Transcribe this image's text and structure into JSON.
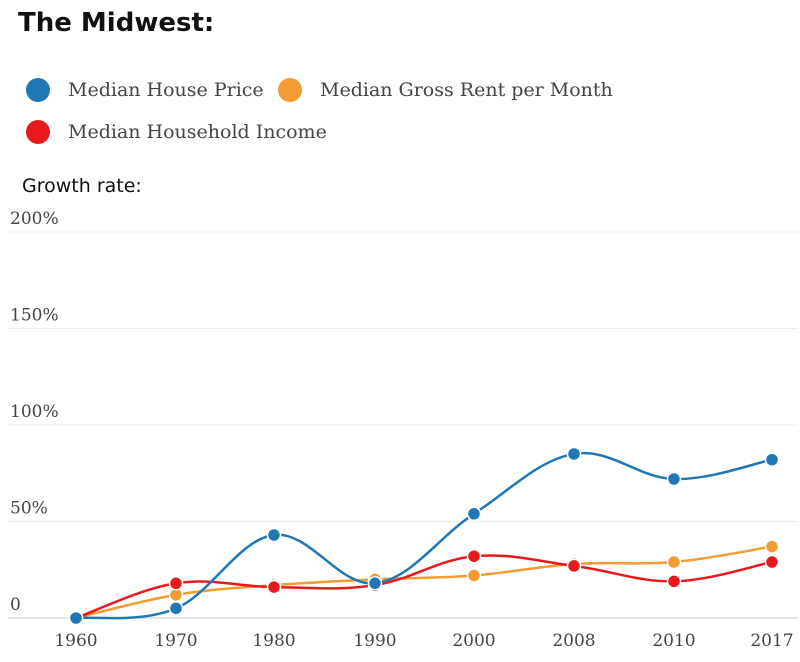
{
  "chart_data": {
    "type": "line",
    "title": "The Midwest:",
    "ylabel": "Growth rate:",
    "x": [
      "1960",
      "1970",
      "1980",
      "1990",
      "2000",
      "2008",
      "2010",
      "2017"
    ],
    "ylim": [
      0,
      200
    ],
    "yticks": [
      {
        "value": 0,
        "label": "0"
      },
      {
        "value": 50,
        "label": "50%"
      },
      {
        "value": 100,
        "label": "100%"
      },
      {
        "value": 150,
        "label": "150%"
      },
      {
        "value": 200,
        "label": "200%"
      }
    ],
    "grid": true,
    "legend_position": "top-left",
    "series": [
      {
        "name": "Median House Price",
        "color": "#1f77b4",
        "values": [
          0,
          5,
          43,
          18,
          54,
          85,
          72,
          82
        ]
      },
      {
        "name": "Median Gross Rent per Month",
        "color": "#f39c33",
        "values": [
          0,
          12,
          17,
          20,
          22,
          28,
          29,
          37
        ]
      },
      {
        "name": "Median Household Income",
        "color": "#e8191c",
        "values": [
          0,
          18,
          16,
          17,
          32,
          27,
          19,
          29
        ]
      }
    ]
  }
}
